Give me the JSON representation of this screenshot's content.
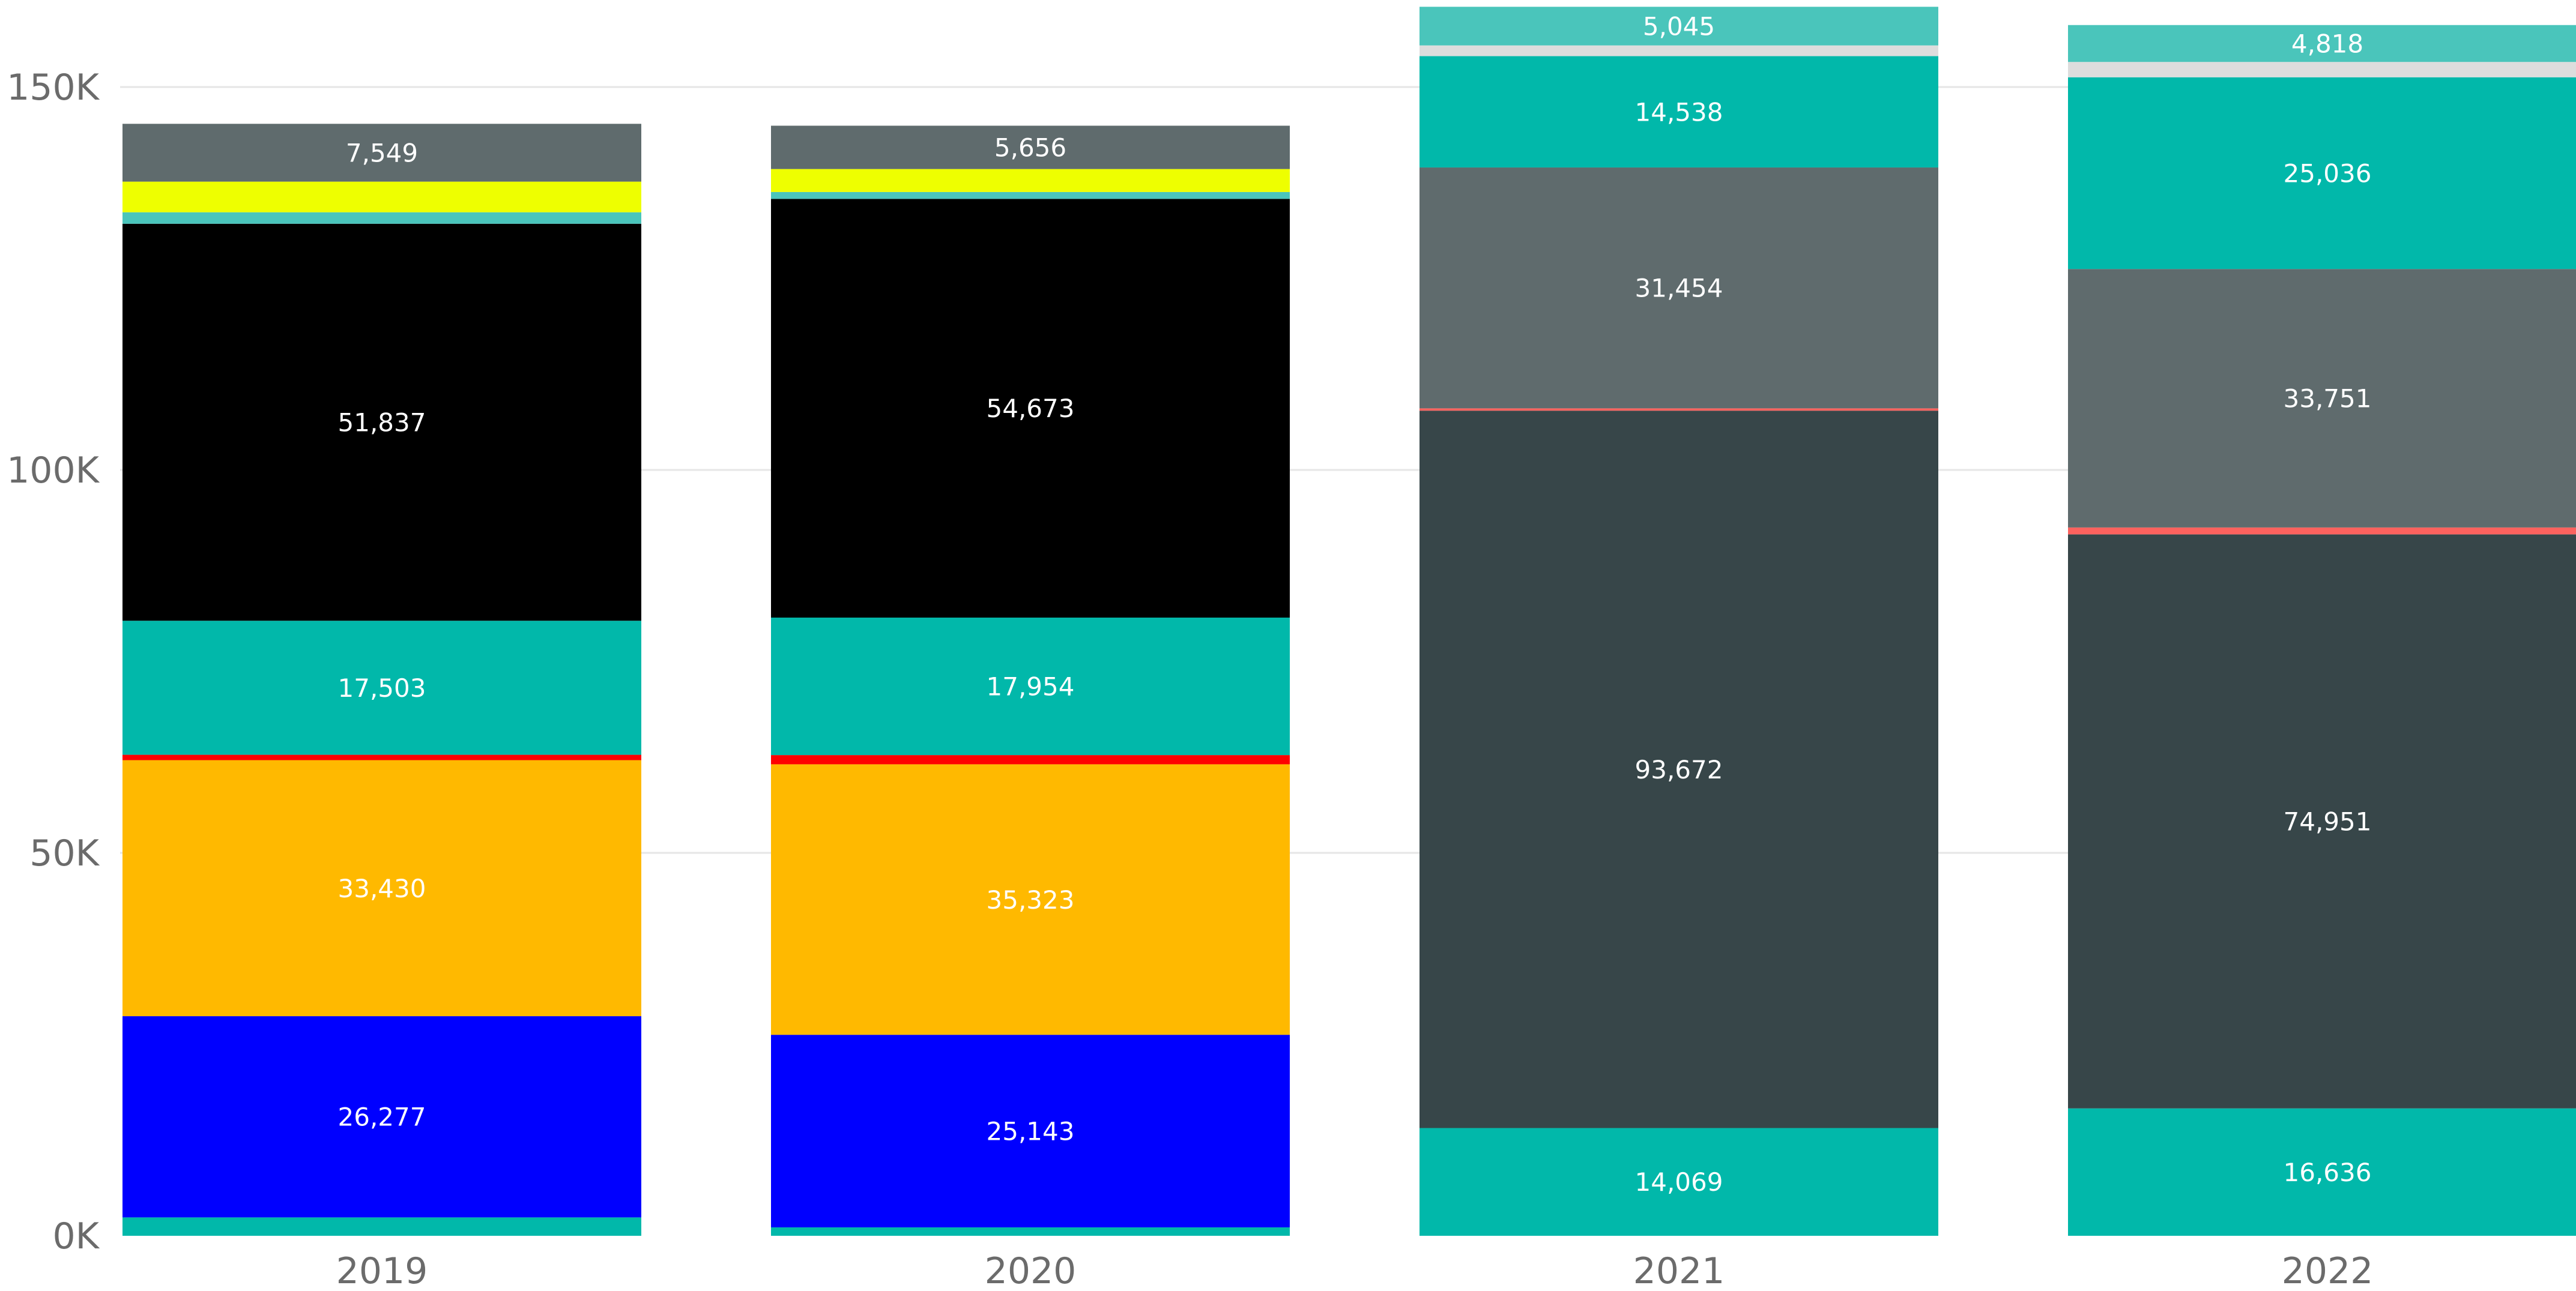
{
  "chart_data": {
    "type": "bar",
    "stacked": true,
    "categories": [
      "2019",
      "2020",
      "2021",
      "2022"
    ],
    "ylim": [
      0,
      160000
    ],
    "yticks": [
      0,
      50000,
      100000,
      150000
    ],
    "ytick_labels": [
      "0K",
      "50K",
      "100K",
      "150K"
    ],
    "grid": true,
    "legend": "none",
    "segments": [
      [
        {
          "value": 2400,
          "color": "#01B8AA",
          "label": ""
        },
        {
          "value": 26277,
          "color": "#0000FF",
          "label": "26,277"
        },
        {
          "value": 33430,
          "color": "#FFB900",
          "label": "33,430"
        },
        {
          "value": 700,
          "color": "#FF0000",
          "label": ""
        },
        {
          "value": 17503,
          "color": "#01B8AA",
          "label": "17,503"
        },
        {
          "value": 51837,
          "color": "#000000",
          "label": "51,837"
        },
        {
          "value": 1500,
          "color": "#4AC5BB",
          "label": ""
        },
        {
          "value": 4000,
          "color": "#EEFF00",
          "label": ""
        },
        {
          "value": 7549,
          "color": "#5F6B6D",
          "label": "7,549"
        }
      ],
      [
        {
          "value": 1100,
          "color": "#01B8AA",
          "label": ""
        },
        {
          "value": 25143,
          "color": "#0000FF",
          "label": "25,143"
        },
        {
          "value": 35323,
          "color": "#FFB900",
          "label": "35,323"
        },
        {
          "value": 1200,
          "color": "#FF0000",
          "label": ""
        },
        {
          "value": 17954,
          "color": "#01B8AA",
          "label": "17,954"
        },
        {
          "value": 54673,
          "color": "#000000",
          "label": "54,673"
        },
        {
          "value": 900,
          "color": "#4AC5BB",
          "label": ""
        },
        {
          "value": 3000,
          "color": "#EEFF00",
          "label": ""
        },
        {
          "value": 5656,
          "color": "#5F6B6D",
          "label": "5,656"
        }
      ],
      [
        {
          "value": 14069,
          "color": "#01B8AA",
          "label": "14,069"
        },
        {
          "value": 93672,
          "color": "#374649",
          "label": "93,672"
        },
        {
          "value": 300,
          "color": "#FD625E",
          "label": ""
        },
        {
          "value": 31454,
          "color": "#5F6B6D",
          "label": "31,454"
        },
        {
          "value": 14538,
          "color": "#01B8AA",
          "label": "14,538"
        },
        {
          "value": 1400,
          "color": "#DDDDDD",
          "label": ""
        },
        {
          "value": 5045,
          "color": "#4AC5BB",
          "label": "5,045"
        }
      ],
      [
        {
          "value": 16636,
          "color": "#01B8AA",
          "label": "16,636"
        },
        {
          "value": 74951,
          "color": "#374649",
          "label": "74,951"
        },
        {
          "value": 900,
          "color": "#FD625E",
          "label": ""
        },
        {
          "value": 33751,
          "color": "#5F6B6D",
          "label": "33,751"
        },
        {
          "value": 25036,
          "color": "#01B8AA",
          "label": "25,036"
        },
        {
          "value": 2000,
          "color": "#DDDDDD",
          "label": ""
        },
        {
          "value": 4818,
          "color": "#4AC5BB",
          "label": "4,818"
        }
      ]
    ]
  }
}
